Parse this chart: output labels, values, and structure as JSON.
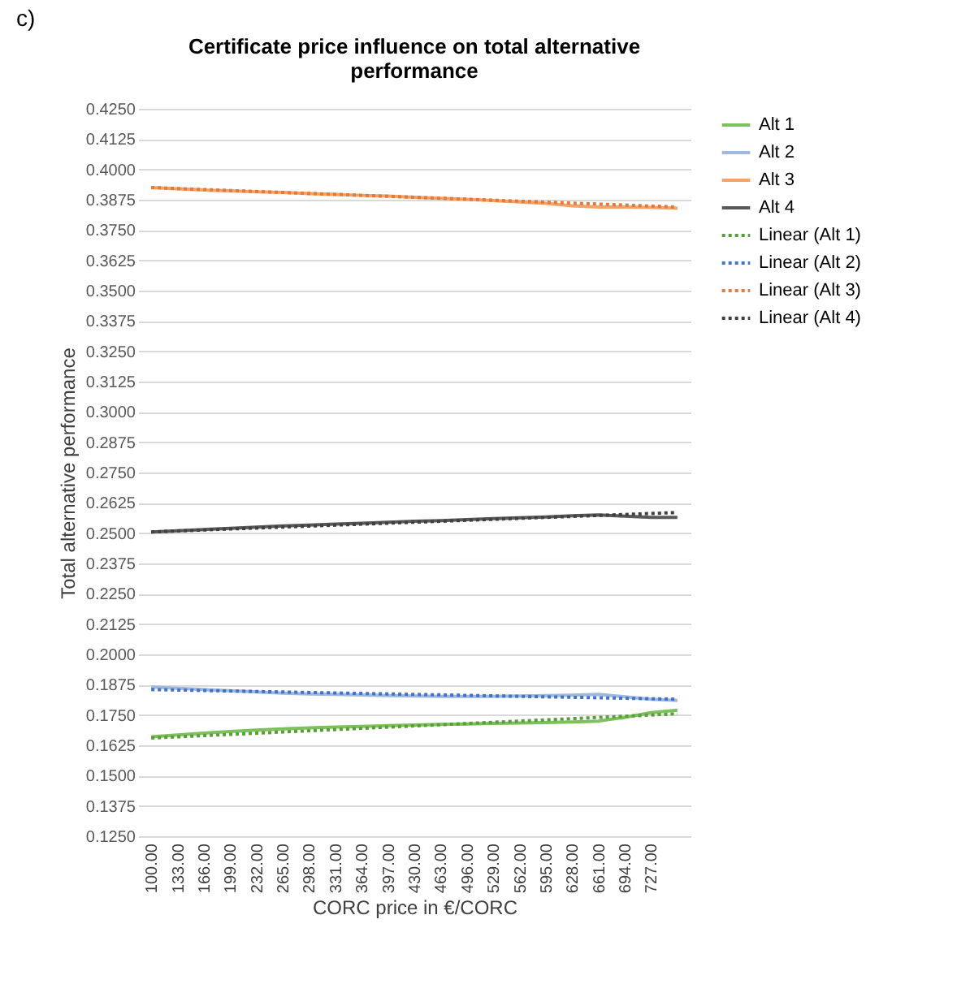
{
  "chart_data": {
    "type": "line",
    "title": "Certificate price influence on total alternative performance",
    "annotations": [
      "c)"
    ],
    "xlabel": "CORC price in €/CORC",
    "ylabel": "Total alternative performance",
    "categories": [
      "100.00",
      "133.00",
      "166.00",
      "199.00",
      "232.00",
      "265.00",
      "298.00",
      "331.00",
      "364.00",
      "397.00",
      "430.00",
      "463.00",
      "496.00",
      "529.00",
      "562.00",
      "595.00",
      "628.00",
      "661.00",
      "694.00",
      "727.00",
      null
    ],
    "series": [
      {
        "name": "Alt 1",
        "color": "#7cc15a",
        "line_style": "solid",
        "values": [
          0.166,
          0.1668,
          0.1675,
          0.1682,
          0.1688,
          0.1693,
          0.1697,
          0.17,
          0.1703,
          0.1706,
          0.1709,
          0.1711,
          0.1713,
          0.1715,
          0.1717,
          0.1719,
          0.1721,
          0.1725,
          0.174,
          0.176,
          0.177
        ]
      },
      {
        "name": "Alt 2",
        "color": "#9fb8e0",
        "line_style": "solid",
        "values": [
          0.1865,
          0.186,
          0.1855,
          0.185,
          0.1845,
          0.184,
          0.1837,
          0.1835,
          0.1833,
          0.183,
          0.1828,
          0.1827,
          0.1827,
          0.1827,
          0.1828,
          0.183,
          0.1832,
          0.1835,
          0.1825,
          0.1815,
          0.181
        ]
      },
      {
        "name": "Alt 3",
        "color": "#f4a26b",
        "line_style": "solid",
        "values": [
          0.3925,
          0.392,
          0.3915,
          0.3912,
          0.3908,
          0.3905,
          0.39,
          0.3897,
          0.3893,
          0.389,
          0.3885,
          0.3881,
          0.3877,
          0.3872,
          0.3866,
          0.386,
          0.385,
          0.3845,
          0.3845,
          0.3843,
          0.384
        ]
      },
      {
        "name": "Alt 4",
        "color": "#595959",
        "line_style": "solid",
        "values": [
          0.2505,
          0.251,
          0.2515,
          0.252,
          0.2525,
          0.253,
          0.2533,
          0.2537,
          0.2541,
          0.2545,
          0.2549,
          0.2552,
          0.2556,
          0.256,
          0.2563,
          0.2567,
          0.2572,
          0.2575,
          0.257,
          0.2565,
          0.2565
        ]
      },
      {
        "name": "Linear (Alt 1)",
        "color": "#5a9e3c",
        "line_style": "dotted",
        "values": [
          0.1655,
          0.166,
          0.1665,
          0.167,
          0.1675,
          0.168,
          0.1685,
          0.169,
          0.1695,
          0.17,
          0.1705,
          0.171,
          0.1715,
          0.172,
          0.1725,
          0.173,
          0.1735,
          0.174,
          0.1745,
          0.175,
          0.1755
        ]
      },
      {
        "name": "Linear (Alt 2)",
        "color": "#4472c4",
        "line_style": "dotted",
        "values": [
          0.1855,
          0.1853,
          0.1851,
          0.1849,
          0.1847,
          0.1845,
          0.1843,
          0.1841,
          0.1839,
          0.1837,
          0.1835,
          0.1833,
          0.1831,
          0.1829,
          0.1827,
          0.1825,
          0.1823,
          0.1821,
          0.1819,
          0.1817,
          0.1815
        ]
      },
      {
        "name": "Linear (Alt 3)",
        "color": "#e07b39",
        "line_style": "dotted",
        "values": [
          0.3925,
          0.3921,
          0.3917,
          0.3913,
          0.3909,
          0.3905,
          0.3901,
          0.3897,
          0.3893,
          0.3889,
          0.3885,
          0.3881,
          0.3877,
          0.3873,
          0.3869,
          0.3865,
          0.3861,
          0.3857,
          0.3853,
          0.3849,
          0.3845
        ]
      },
      {
        "name": "Linear (Alt 4)",
        "color": "#404040",
        "line_style": "dotted",
        "values": [
          0.2505,
          0.2509,
          0.2513,
          0.2517,
          0.2521,
          0.2525,
          0.2529,
          0.2533,
          0.2537,
          0.2541,
          0.2545,
          0.2549,
          0.2553,
          0.2557,
          0.2561,
          0.2565,
          0.2569,
          0.2573,
          0.2577,
          0.2581,
          0.2585
        ]
      }
    ],
    "ylim": [
      0.125,
      0.425
    ],
    "yticks": [
      {
        "value": 0.125,
        "label": "0.1250"
      },
      {
        "value": 0.1375,
        "label": "0.1375"
      },
      {
        "value": 0.15,
        "label": "0.1500"
      },
      {
        "value": 0.1625,
        "label": "0.1625"
      },
      {
        "value": 0.175,
        "label": "0.1750"
      },
      {
        "value": 0.1875,
        "label": "0.1875"
      },
      {
        "value": 0.2,
        "label": "0.2000"
      },
      {
        "value": 0.2125,
        "label": "0.2125"
      },
      {
        "value": 0.225,
        "label": "0.2250"
      },
      {
        "value": 0.2375,
        "label": "0.2375"
      },
      {
        "value": 0.25,
        "label": "0.2500"
      },
      {
        "value": 0.2625,
        "label": "0.2625"
      },
      {
        "value": 0.275,
        "label": "0.2750"
      },
      {
        "value": 0.2875,
        "label": "0.2875"
      },
      {
        "value": 0.3,
        "label": "0.3000"
      },
      {
        "value": 0.3125,
        "label": "0.3125"
      },
      {
        "value": 0.325,
        "label": "0.3250"
      },
      {
        "value": 0.3375,
        "label": "0.3375"
      },
      {
        "value": 0.35,
        "label": "0.3500"
      },
      {
        "value": 0.3625,
        "label": "0.3625"
      },
      {
        "value": 0.375,
        "label": "0.3750"
      },
      {
        "value": 0.3875,
        "label": "0.3875"
      },
      {
        "value": 0.4,
        "label": "0.4000"
      },
      {
        "value": 0.4125,
        "label": "0.4125"
      },
      {
        "value": 0.425,
        "label": "0.4250"
      }
    ],
    "grid": "y",
    "legend": "right",
    "marker": "none"
  }
}
